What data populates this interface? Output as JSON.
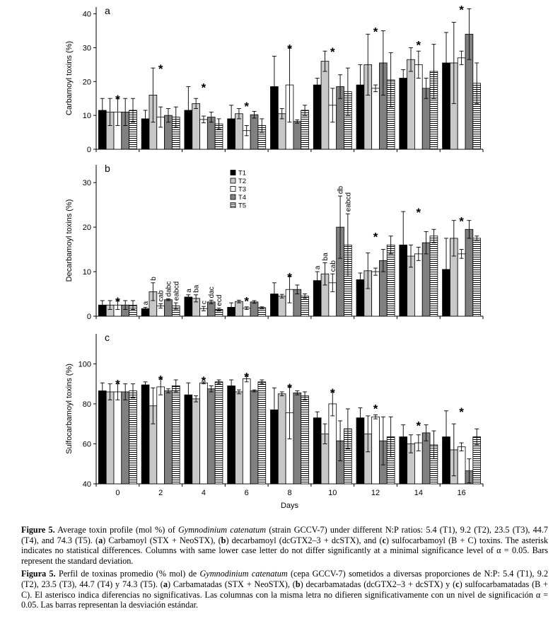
{
  "chart_data": [
    {
      "type": "bar",
      "panel_label": "a",
      "ylabel": "Carbamoyl toxins (%)",
      "ylim": [
        0,
        42
      ],
      "yticks": [
        0,
        10,
        20,
        30,
        40
      ],
      "significance": [
        "*",
        "*",
        "*",
        "*",
        "*",
        "*",
        "*",
        "*",
        "*"
      ],
      "series": [
        {
          "color": "#000000",
          "values": [
            11.5,
            9,
            11.5,
            9,
            18.5,
            19,
            19,
            21,
            25.5
          ],
          "errors": [
            3.5,
            2.5,
            7,
            4,
            9,
            2,
            6,
            2.5,
            9
          ]
        },
        {
          "color": "#c8c8c8",
          "values": [
            11,
            16,
            13.5,
            10.5,
            10.5,
            26,
            25,
            26.5,
            25.5
          ],
          "errors": [
            4,
            8,
            1.5,
            1.5,
            1.5,
            3,
            9,
            3.5,
            12
          ]
        },
        {
          "color": "#ffffff",
          "values": [
            11,
            9.5,
            8.8,
            5.5,
            19,
            13,
            18,
            25,
            27
          ],
          "errors": [
            4,
            3,
            1,
            1.5,
            11,
            5,
            1,
            4,
            2
          ]
        },
        {
          "color": "#808080",
          "values": [
            11,
            10,
            9.5,
            10.2,
            8.2,
            18.5,
            25.5,
            18,
            34
          ],
          "errors": [
            4,
            2,
            1.5,
            1,
            0.5,
            3.5,
            9.5,
            3,
            7.5
          ]
        },
        {
          "color": "#ffffff",
          "pattern": "hlines",
          "values": [
            11.5,
            9.5,
            7.5,
            7,
            11.5,
            17,
            20.5,
            23,
            19.5
          ],
          "errors": [
            3.5,
            3,
            1.5,
            2,
            1.5,
            7,
            8,
            8,
            6
          ]
        }
      ]
    },
    {
      "type": "bar",
      "panel_label": "b",
      "ylabel": "Decarbamoyl toxins (%)",
      "ylim": [
        0,
        34
      ],
      "yticks": [
        0,
        10,
        20,
        30
      ],
      "legend": true,
      "significance": [
        "*",
        null,
        null,
        "*",
        "*",
        null,
        "*",
        "*",
        "*"
      ],
      "group_letters": [
        null,
        [
          "a",
          "b",
          "cab",
          "dabc",
          "eabcd"
        ],
        [
          "a",
          "ba",
          "c",
          "dac",
          "ecd"
        ],
        null,
        null,
        [
          "a",
          "ba",
          "cab",
          "db",
          "eabcd"
        ],
        null,
        null,
        null
      ],
      "series": [
        {
          "name": "T1",
          "color": "#000000",
          "values": [
            2.5,
            1.7,
            4.3,
            2,
            5,
            8,
            8.2,
            16,
            10.5
          ],
          "errors": [
            1,
            0.3,
            0.5,
            1,
            2.5,
            2,
            1.5,
            7.5,
            7
          ]
        },
        {
          "name": "T2",
          "color": "#c8c8c8",
          "values": [
            2.5,
            5.5,
            4,
            3.3,
            4.5,
            9.5,
            10.2,
            13.5,
            17.5
          ],
          "errors": [
            1,
            2,
            0.8,
            0.3,
            0.4,
            2.5,
            4,
            2.5,
            4
          ]
        },
        {
          "name": "T3",
          "color": "#ffffff",
          "values": [
            2.5,
            2.3,
            1.7,
            1.8,
            6,
            7.5,
            10,
            14,
            14
          ],
          "errors": [
            1,
            0.5,
            0.5,
            0.3,
            3,
            2,
            0.8,
            1.5,
            1
          ]
        },
        {
          "name": "T4",
          "color": "#808080",
          "values": [
            2.5,
            3.7,
            3.2,
            3.2,
            6,
            20,
            12.5,
            16.5,
            19.5
          ],
          "errors": [
            1,
            0.2,
            0.4,
            0.3,
            1,
            7,
            2.5,
            2.5,
            2
          ]
        },
        {
          "name": "T5",
          "color": "#ffffff",
          "pattern": "hlines",
          "values": [
            2.5,
            2.3,
            1.5,
            1.9,
            4.5,
            16,
            16,
            18,
            17.5
          ],
          "errors": [
            1,
            0.7,
            0.3,
            0.2,
            0.5,
            7,
            2,
            1.5,
            0.5
          ]
        }
      ]
    },
    {
      "type": "bar",
      "panel_label": "c",
      "ylabel": "Sulfocarbamoyl toxins (%)",
      "xlabel": "Days",
      "ylim": [
        40,
        115
      ],
      "yticks": [
        40,
        60,
        80,
        100
      ],
      "categories": [
        "0",
        "2",
        "4",
        "6",
        "8",
        "10",
        "12",
        "14",
        "16"
      ],
      "significance": [
        "*",
        "*",
        "*",
        "*",
        "*",
        "*",
        "*",
        "*",
        "*"
      ],
      "series": [
        {
          "color": "#000000",
          "values": [
            86.5,
            89.5,
            84.5,
            89,
            77,
            73,
            73,
            63.5,
            63.5
          ],
          "errors": [
            4,
            1.5,
            6,
            3,
            11,
            3,
            5,
            6,
            13
          ]
        },
        {
          "color": "#c8c8c8",
          "values": [
            86,
            79,
            82.5,
            86,
            85,
            65,
            65,
            60,
            57
          ],
          "errors": [
            4,
            9,
            1.5,
            1,
            1,
            5,
            9,
            4.5,
            13
          ]
        },
        {
          "color": "#ffffff",
          "values": [
            86,
            88.5,
            90.5,
            92.5,
            75.5,
            80,
            73.5,
            60.5,
            58.5
          ],
          "errors": [
            4,
            4,
            0.5,
            1.5,
            13,
            6,
            1,
            4,
            2
          ]
        },
        {
          "color": "#808080",
          "values": [
            86,
            86.5,
            87.5,
            86.5,
            85.5,
            61.5,
            61.5,
            65.5,
            46.5
          ],
          "errors": [
            4,
            1,
            1.5,
            0.5,
            1,
            10,
            12,
            4,
            6
          ]
        },
        {
          "color": "#ffffff",
          "pattern": "hlines",
          "values": [
            86.5,
            89,
            91,
            91,
            84,
            67.5,
            63.5,
            59.5,
            63.5
          ],
          "errors": [
            3.5,
            3,
            1,
            1,
            2,
            10,
            10,
            7,
            4
          ]
        }
      ]
    }
  ],
  "caption": [
    [
      {
        "text": "Figure 5.",
        "style": "bold"
      },
      {
        "text": " Average toxin profile (mol %) of "
      },
      {
        "text": "Gymnodinium catenatum",
        "style": "italic"
      },
      {
        "text": " (strain GCCV-7) under different N:P ratios: 5.4 (T1), 9.2 (T2), 23.5 (T3), 44.7 (T4), and 74.3 (T5). ("
      },
      {
        "text": "a",
        "style": "bold"
      },
      {
        "text": ") Carbamoyl (STX + NeoSTX), ("
      },
      {
        "text": "b",
        "style": "bold"
      },
      {
        "text": ") decarbamoyl (dcGTX2–3 + dcSTX), and ("
      },
      {
        "text": "c",
        "style": "bold"
      },
      {
        "text": ") sulfocarbamoyl (B + C) toxins. The asterisk indicates no statistical differences. Columns with same lower case letter do not differ significantly at a minimal significance level of α = 0.05. Bars represent the standard deviation."
      }
    ],
    [
      {
        "text": "Figura 5.",
        "style": "bold"
      },
      {
        "text": " Perfil de toxinas promedio (% mol) de "
      },
      {
        "text": "Gymnodinium catenatum",
        "style": "italic"
      },
      {
        "text": " (cepa GCCV-7) sometidos a diversas proporciones de N:P: 5.4 (T1), 9.2 (T2), 23.5 (T3), 44.7 (T4) y 74.3 (T5). ("
      },
      {
        "text": "a",
        "style": "bold"
      },
      {
        "text": ") Carbamatadas (STX + NeoSTX), ("
      },
      {
        "text": "b",
        "style": "bold"
      },
      {
        "text": ") decarbamatadas (dcGTX2–3 + dcSTX) y ("
      },
      {
        "text": "c",
        "style": "bold"
      },
      {
        "text": ") sulfocarbamatadas (B + C). El asterisco indica diferencias no significativas. Las columnas con la misma letra no difieren significativamente con un nivel de significación α = 0.05. Las barras representan la desviación estándar."
      }
    ]
  ]
}
